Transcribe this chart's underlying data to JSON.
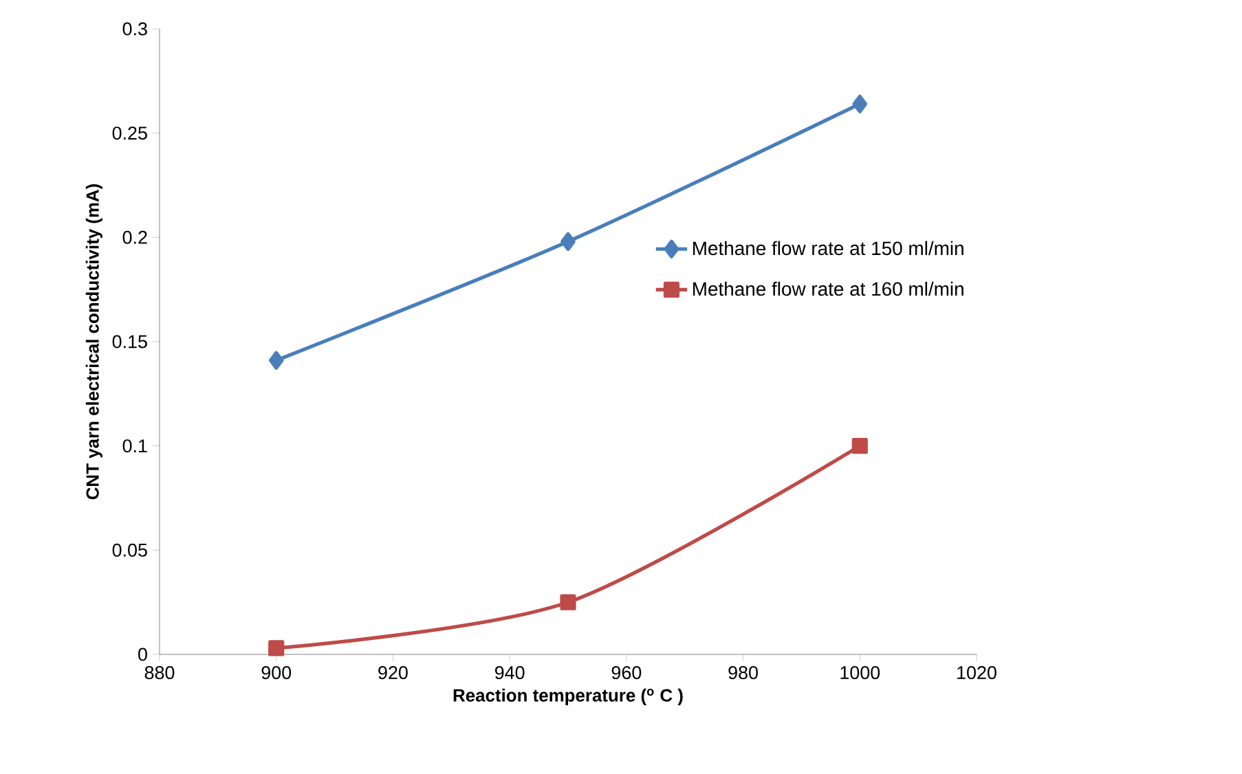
{
  "chart_data": {
    "type": "line",
    "xlabel": "Reaction temperature ($^{o}$ C )",
    "ylabel": "CNT yarn electrical conductivity (mA)",
    "x": [
      900,
      950,
      1000
    ],
    "series": [
      {
        "name": "Methane flow rate at 150 ml/min",
        "color": "#4a7ebb",
        "marker": "diamond",
        "values": [
          0.141,
          0.198,
          0.264
        ]
      },
      {
        "name": "Methane flow rate at 160 ml/min",
        "color": "#be4b48",
        "marker": "square",
        "values": [
          0.003,
          0.025,
          0.1
        ]
      }
    ],
    "xlim": [
      880,
      1020
    ],
    "xticks": [
      880,
      900,
      920,
      940,
      960,
      980,
      1000,
      1020
    ],
    "ylim": [
      0,
      0.3
    ],
    "yticks": [
      0,
      0.05,
      0.1,
      0.15,
      0.2,
      0.25,
      0.3
    ],
    "grid": false,
    "legend": "right",
    "line_style": "solid"
  }
}
